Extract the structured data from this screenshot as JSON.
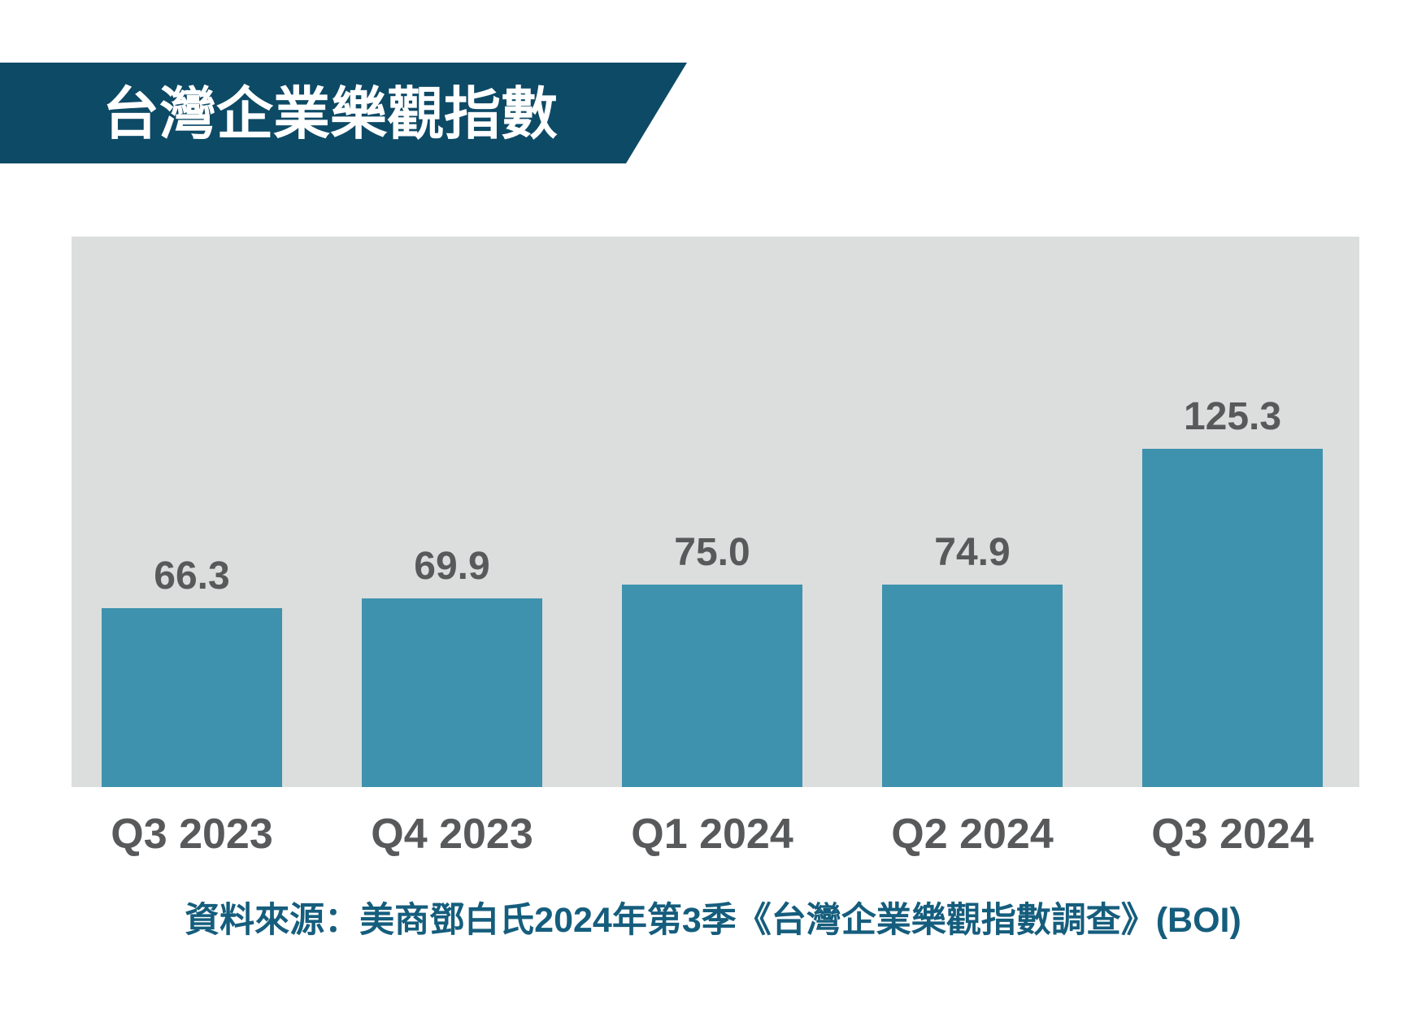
{
  "banner": {
    "title": "台灣企業樂觀指數"
  },
  "source_note": "資料來源：美商鄧白氏2024年第3季《台灣企業樂觀指數調查》(BOI)",
  "colors": {
    "banner": "#0d4a66",
    "bar": "#3e92ad",
    "chart_bg": "#dcdddd",
    "label": "#58595b",
    "source_text": "#155d7d"
  },
  "chart_data": {
    "type": "bar",
    "title": "台灣企業樂觀指數",
    "categories": [
      "Q3 2023",
      "Q4 2023",
      "Q1 2024",
      "Q2 2024",
      "Q3 2024"
    ],
    "values": [
      66.3,
      69.9,
      75.0,
      74.9,
      125.3
    ],
    "value_labels": [
      "66.3",
      "69.9",
      "75.0",
      "74.9",
      "125.3"
    ],
    "series_name": "台灣企業樂觀指數 (BOI)",
    "xlabel": "",
    "ylabel": "",
    "ylim": [
      0,
      135
    ],
    "grid": false,
    "legend": false,
    "axes_visible": false,
    "bar_color": "#3e92ad",
    "plot_background": "#dcdddd",
    "data_label_position": "above-bar"
  }
}
